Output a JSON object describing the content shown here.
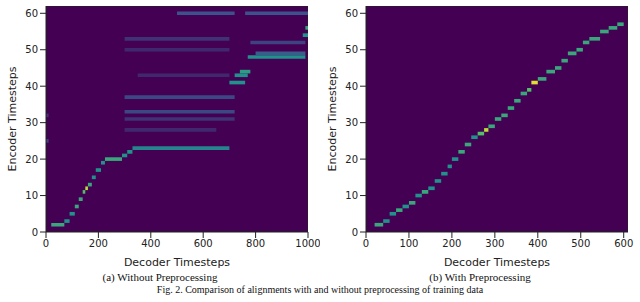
{
  "caption": "Fig. 2. Comparison of alignments with and without preprocessing of training data",
  "chart_data": [
    {
      "type": "heatmap",
      "title": "(a) Without Preprocessing",
      "x_label": "Decoder Timesteps",
      "y_label": "Encoder Timesteps",
      "xlim": [
        0,
        1000
      ],
      "ylim": [
        0,
        62
      ],
      "xticks": [
        0,
        200,
        400,
        600,
        800,
        1000
      ],
      "yticks": [
        0,
        10,
        20,
        30,
        40,
        50,
        60
      ],
      "cells": [
        [
          20,
          70,
          2,
          0.6
        ],
        [
          70,
          90,
          3,
          0.5
        ],
        [
          90,
          110,
          5,
          0.5
        ],
        [
          110,
          125,
          7,
          0.6
        ],
        [
          125,
          140,
          9,
          0.6
        ],
        [
          140,
          150,
          11,
          0.7
        ],
        [
          150,
          160,
          12,
          0.9
        ],
        [
          160,
          175,
          13,
          0.6
        ],
        [
          175,
          190,
          15,
          0.5
        ],
        [
          190,
          210,
          17,
          0.5
        ],
        [
          210,
          225,
          19,
          0.5
        ],
        [
          225,
          290,
          20,
          0.6
        ],
        [
          290,
          310,
          21,
          0.5
        ],
        [
          310,
          330,
          22,
          0.5
        ],
        [
          330,
          700,
          23,
          0.45
        ],
        [
          300,
          650,
          28,
          0.12
        ],
        [
          300,
          720,
          31,
          0.15
        ],
        [
          300,
          720,
          33,
          0.22
        ],
        [
          300,
          720,
          37,
          0.22
        ],
        [
          350,
          700,
          43,
          0.12
        ],
        [
          300,
          700,
          50,
          0.12
        ],
        [
          300,
          700,
          53,
          0.15
        ],
        [
          500,
          720,
          60,
          0.25
        ],
        [
          760,
          1000,
          60,
          0.25
        ],
        [
          0,
          10,
          25,
          0.2
        ],
        [
          0,
          10,
          32,
          0.15
        ],
        [
          700,
          760,
          41,
          0.5
        ],
        [
          720,
          770,
          43,
          0.5
        ],
        [
          740,
          780,
          44,
          0.55
        ],
        [
          770,
          990,
          48,
          0.5
        ],
        [
          800,
          990,
          49,
          0.3
        ],
        [
          780,
          990,
          52,
          0.2
        ],
        [
          980,
          1000,
          54,
          0.5
        ],
        [
          990,
          1000,
          56,
          0.6
        ]
      ]
    },
    {
      "type": "heatmap",
      "title": "(b) With Preprocessing",
      "x_label": "Decoder Timesteps",
      "y_label": "Encoder Timesteps",
      "xlim": [
        0,
        610
      ],
      "ylim": [
        0,
        62
      ],
      "xticks": [
        0,
        100,
        200,
        300,
        400,
        500,
        600
      ],
      "yticks": [
        0,
        10,
        20,
        30,
        40,
        50,
        60
      ],
      "cells": [
        [
          20,
          40,
          2,
          0.6
        ],
        [
          40,
          55,
          3,
          0.5
        ],
        [
          55,
          70,
          5,
          0.5
        ],
        [
          70,
          85,
          6,
          0.6
        ],
        [
          85,
          100,
          7,
          0.5
        ],
        [
          100,
          115,
          8,
          0.6
        ],
        [
          115,
          130,
          10,
          0.5
        ],
        [
          130,
          145,
          11,
          0.6
        ],
        [
          145,
          160,
          12,
          0.5
        ],
        [
          160,
          175,
          14,
          0.5
        ],
        [
          175,
          190,
          16,
          0.5
        ],
        [
          190,
          200,
          18,
          0.5
        ],
        [
          200,
          215,
          20,
          0.5
        ],
        [
          215,
          230,
          22,
          0.6
        ],
        [
          230,
          245,
          24,
          0.6
        ],
        [
          245,
          260,
          26,
          0.5
        ],
        [
          260,
          275,
          27,
          0.7
        ],
        [
          275,
          285,
          28,
          0.9
        ],
        [
          285,
          300,
          29,
          0.6
        ],
        [
          300,
          315,
          31,
          0.6
        ],
        [
          315,
          330,
          32,
          0.6
        ],
        [
          330,
          345,
          34,
          0.6
        ],
        [
          345,
          360,
          36,
          0.6
        ],
        [
          360,
          375,
          38,
          0.6
        ],
        [
          375,
          385,
          39,
          0.7
        ],
        [
          385,
          400,
          41,
          0.95
        ],
        [
          400,
          420,
          42,
          0.6
        ],
        [
          420,
          440,
          44,
          0.6
        ],
        [
          440,
          455,
          45,
          0.6
        ],
        [
          455,
          470,
          47,
          0.6
        ],
        [
          470,
          490,
          49,
          0.6
        ],
        [
          490,
          505,
          50,
          0.6
        ],
        [
          505,
          520,
          52,
          0.6
        ],
        [
          520,
          545,
          53,
          0.6
        ],
        [
          545,
          565,
          55,
          0.6
        ],
        [
          565,
          585,
          56,
          0.6
        ],
        [
          585,
          600,
          57,
          0.6
        ]
      ]
    }
  ]
}
